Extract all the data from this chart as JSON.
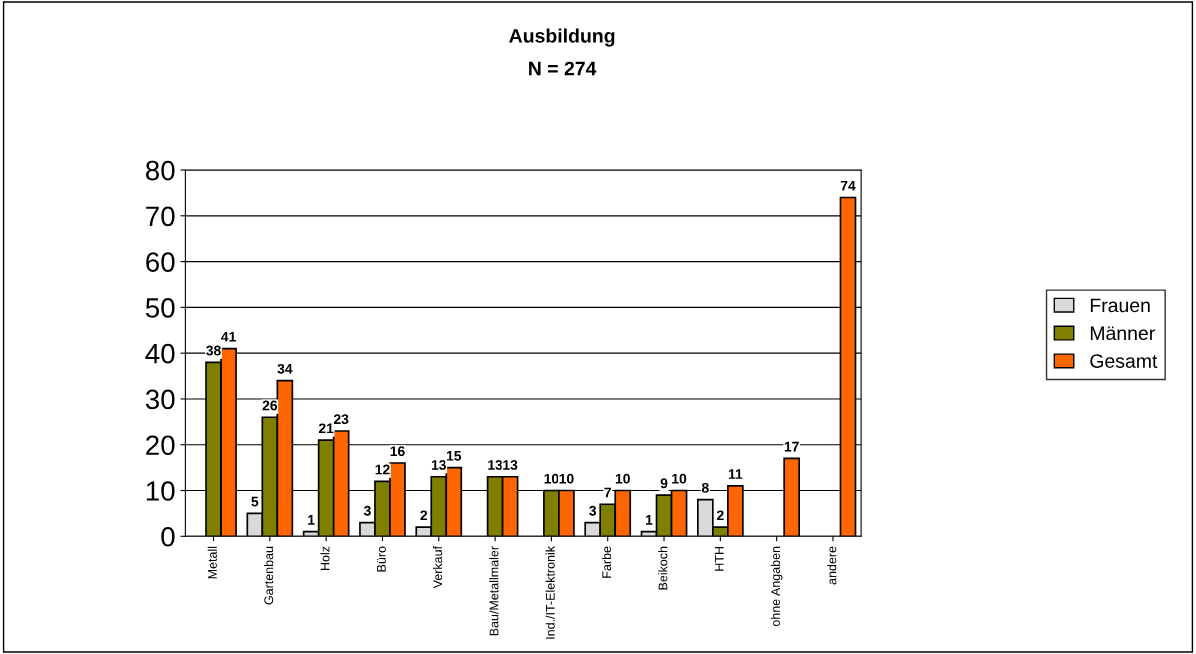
{
  "chart_data": {
    "type": "bar",
    "title": "Ausbildung",
    "subtitle": "N = 274",
    "categories": [
      "Metall",
      "Gartenbau",
      "Holz",
      "Büro",
      "Verkauf",
      "Bau/Metallmaler",
      "Ind./IT-Elektronik",
      "Farbe",
      "Beikoch",
      "HTH",
      "ohne Angaben",
      "andere"
    ],
    "series": [
      {
        "name": "Frauen",
        "color": "#d9d9d9",
        "values": [
          null,
          5,
          1,
          3,
          2,
          null,
          null,
          3,
          1,
          8,
          null,
          null
        ]
      },
      {
        "name": "Männer",
        "color": "#808000",
        "values": [
          38,
          26,
          21,
          12,
          13,
          13,
          10,
          7,
          9,
          2,
          null,
          null
        ]
      },
      {
        "name": "Gesamt",
        "color": "#ff6600",
        "values": [
          41,
          34,
          23,
          16,
          15,
          13,
          10,
          10,
          10,
          11,
          17,
          74
        ]
      }
    ],
    "ylim": [
      0,
      80
    ],
    "yticks": [
      0,
      10,
      20,
      30,
      40,
      50,
      60,
      70,
      80
    ],
    "grid": "y",
    "legend": "right",
    "data_labels": true
  }
}
